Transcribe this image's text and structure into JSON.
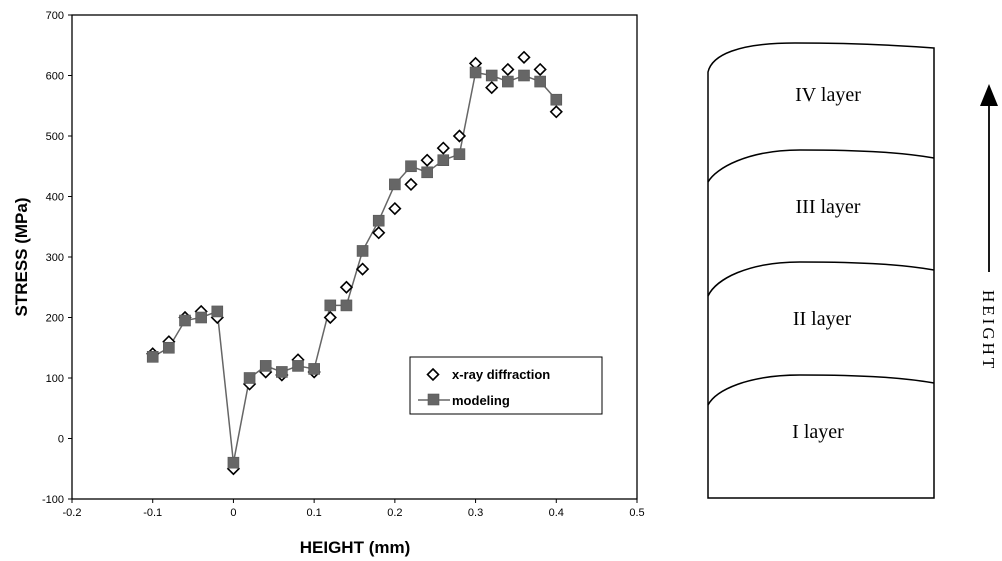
{
  "chart_data": {
    "type": "line",
    "xlabel": "HEIGHT (mm)",
    "ylabel": "STRESS (MPa)",
    "xlim": [
      -0.2,
      0.5
    ],
    "ylim": [
      -100,
      700
    ],
    "xticks": [
      -0.2,
      -0.1,
      0,
      0.1,
      0.2,
      0.3,
      0.4,
      0.5
    ],
    "xtick_labels": [
      "-0.2",
      "-0.1",
      "0",
      "0.1",
      "0.2",
      "0.3",
      "0.4",
      "0.5"
    ],
    "yticks": [
      -100,
      0,
      100,
      200,
      300,
      400,
      500,
      600,
      700
    ],
    "ytick_labels": [
      "-100",
      "0",
      "100",
      "200",
      "300",
      "400",
      "500",
      "600",
      "700"
    ],
    "grid": false,
    "legend_position": "lower-right",
    "series": [
      {
        "name": "x-ray diffraction",
        "marker": "open-diamond",
        "line": false,
        "color": "#000000",
        "x": [
          -0.1,
          -0.08,
          -0.06,
          -0.04,
          -0.02,
          0,
          0.02,
          0.04,
          0.06,
          0.08,
          0.1,
          0.12,
          0.14,
          0.16,
          0.18,
          0.2,
          0.22,
          0.24,
          0.26,
          0.28,
          0.3,
          0.32,
          0.34,
          0.36,
          0.38,
          0.4
        ],
        "y": [
          140,
          160,
          200,
          210,
          200,
          -50,
          90,
          110,
          105,
          130,
          110,
          200,
          250,
          280,
          340,
          380,
          420,
          460,
          480,
          500,
          620,
          580,
          610,
          630,
          610,
          540
        ]
      },
      {
        "name": "modeling",
        "marker": "filled-square",
        "line": true,
        "color": "#666666",
        "x": [
          -0.1,
          -0.08,
          -0.06,
          -0.04,
          -0.02,
          0,
          0.02,
          0.04,
          0.06,
          0.08,
          0.1,
          0.12,
          0.14,
          0.16,
          0.18,
          0.2,
          0.22,
          0.24,
          0.26,
          0.28,
          0.3,
          0.32,
          0.34,
          0.36,
          0.38,
          0.4
        ],
        "y": [
          135,
          150,
          195,
          200,
          210,
          -40,
          100,
          120,
          110,
          120,
          115,
          220,
          220,
          310,
          360,
          420,
          450,
          440,
          460,
          470,
          605,
          600,
          590,
          600,
          590,
          560
        ]
      }
    ]
  },
  "diagram": {
    "layers": [
      "IV layer",
      "III layer",
      "II layer",
      "I layer"
    ],
    "direction_label": "HEIGHT"
  }
}
